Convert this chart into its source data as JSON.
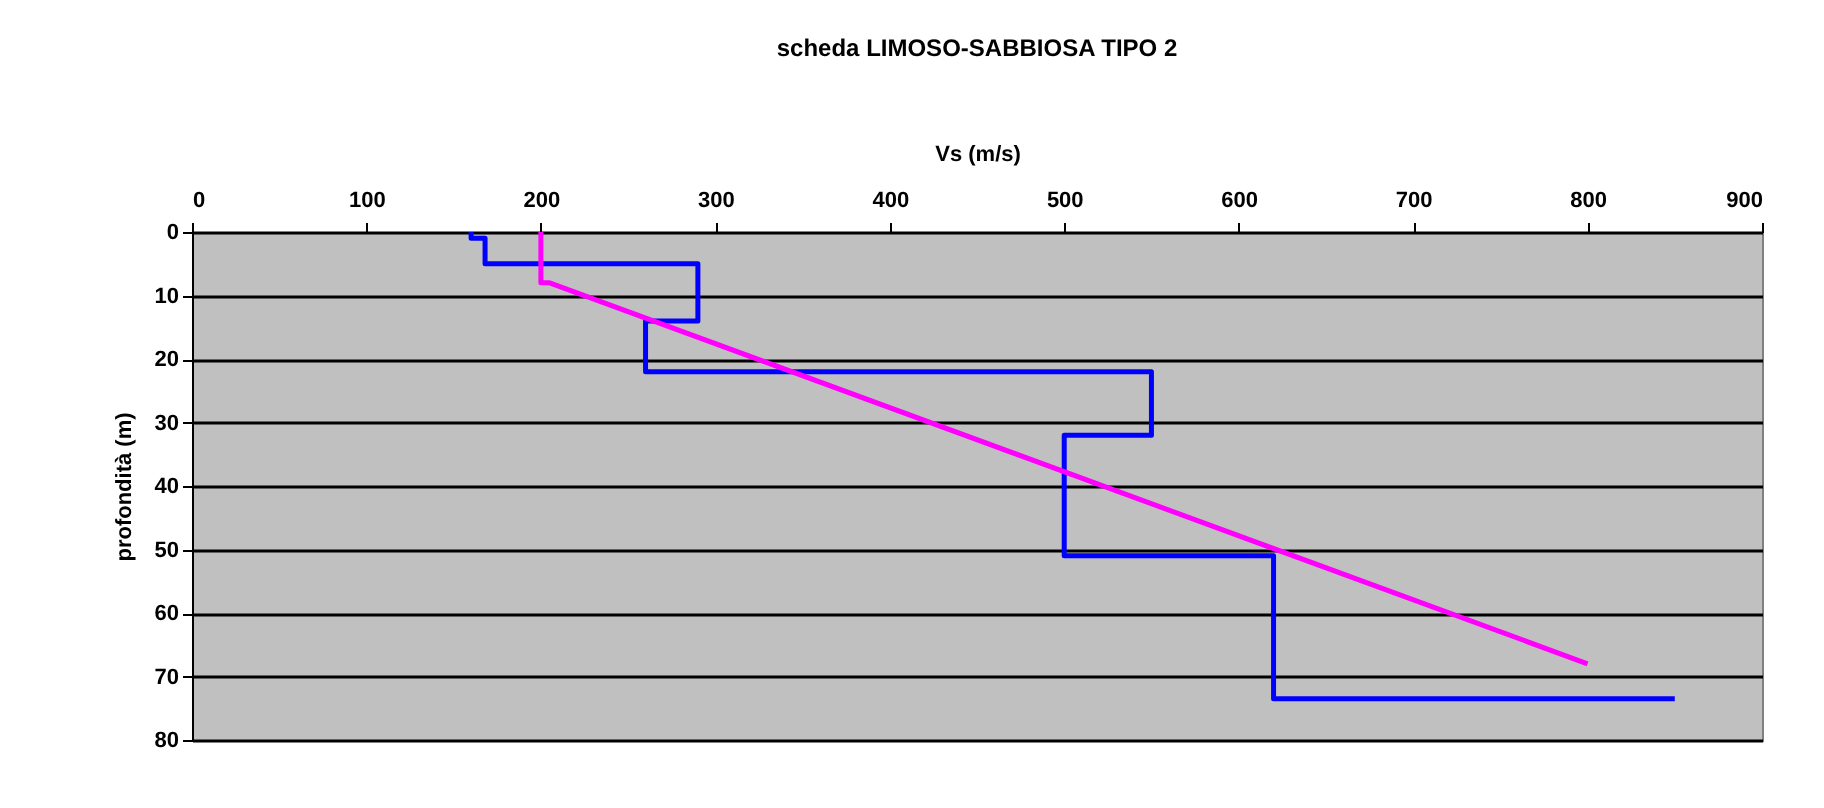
{
  "chart_data": {
    "type": "line",
    "title": "scheda LIMOSO-SABBIOSA TIPO 2",
    "xlabel": "Vs (m/s)",
    "ylabel": "profondità (m)",
    "series": [
      {
        "color": "#0000ff",
        "x": [
          160,
          160,
          168,
          168,
          290,
          290,
          260,
          260,
          550,
          550,
          500,
          500,
          620,
          620,
          850
        ],
        "values": [
          0,
          1,
          1,
          5,
          5,
          14,
          14,
          22,
          22,
          32,
          32,
          51,
          51,
          73.5,
          73.5
        ]
      },
      {
        "color": "#ff00ff",
        "x": [
          200,
          200,
          205,
          800
        ],
        "values": [
          0,
          8,
          8,
          68
        ]
      }
    ],
    "xlim": [
      0,
      900
    ],
    "xticks": [
      0,
      100,
      200,
      300,
      400,
      500,
      600,
      700,
      800,
      900
    ],
    "ylim": [
      80,
      0
    ],
    "yticks": [
      0,
      10,
      20,
      30,
      40,
      50,
      60,
      70,
      80
    ],
    "grid": "y",
    "marker": "none",
    "line_style": "solid"
  }
}
